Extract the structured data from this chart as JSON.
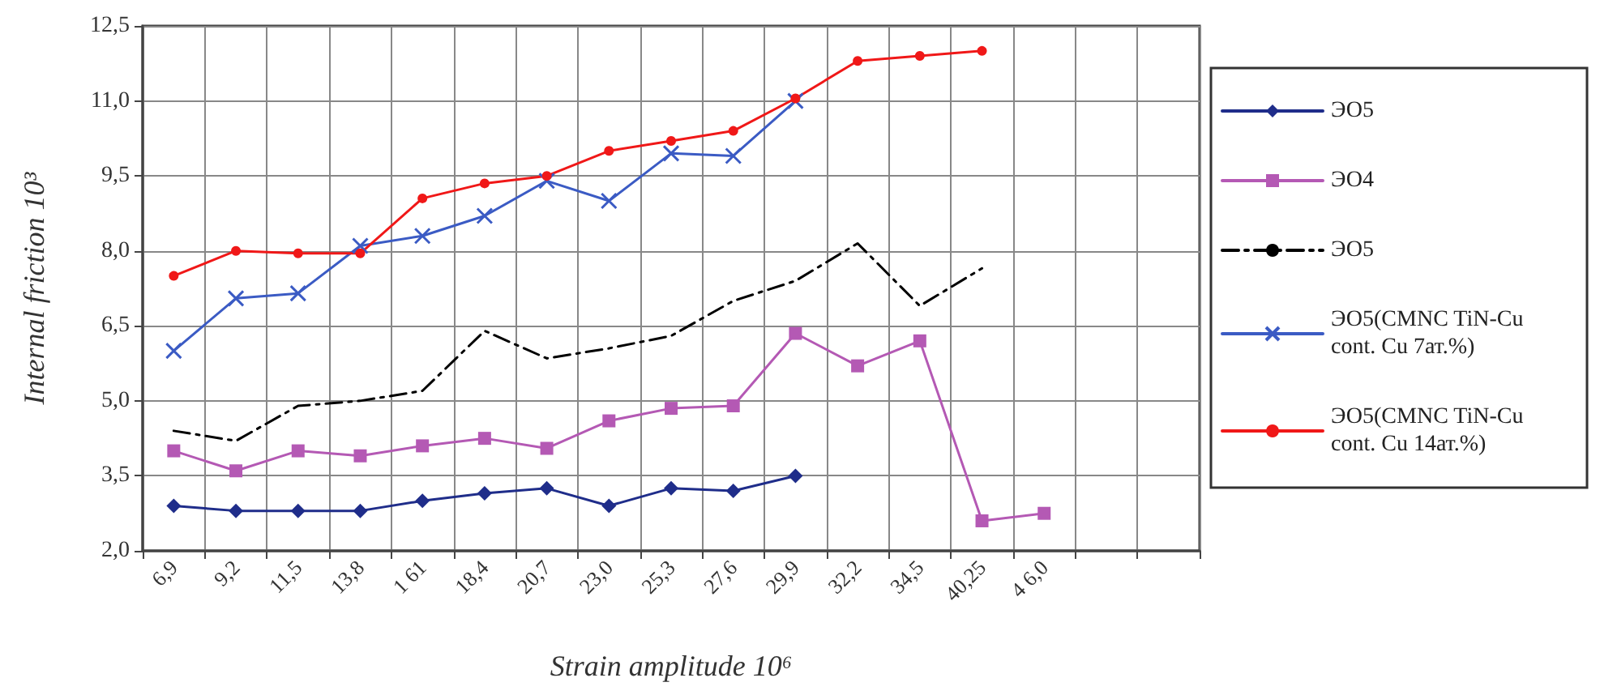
{
  "chart_data": {
    "type": "line",
    "xlabel": "Strain amplitude 10⁶",
    "ylabel": "Internal friction 10³",
    "categories": [
      "6,9",
      "9,2",
      "11,5",
      "13,8",
      "1 61",
      "18,4",
      "20,7",
      "23,0",
      "25,3",
      "27,6",
      "29,9",
      "32,2",
      "34,5",
      "40,25",
      "4 6,0",
      null,
      null
    ],
    "ylim": [
      2,
      12.5
    ],
    "yticks": [
      {
        "value": 2,
        "label": "2,0"
      },
      {
        "value": 3.5,
        "label": "3,5"
      },
      {
        "value": 5,
        "label": "5,0"
      },
      {
        "value": 6.5,
        "label": "6,5"
      },
      {
        "value": 8,
        "label": "8,0"
      },
      {
        "value": 9.5,
        "label": "9,5"
      },
      {
        "value": 11,
        "label": "11,0"
      },
      {
        "value": 12.5,
        "label": "12,5"
      }
    ],
    "grid": true,
    "legend": "right",
    "series": [
      {
        "name": "ЭО5",
        "color": "#1f2d8a",
        "marker": "diamond",
        "line_style": "solid",
        "values": [
          2.9,
          2.8,
          2.8,
          2.8,
          3.0,
          3.15,
          3.25,
          2.9,
          3.25,
          3.2,
          3.5,
          null,
          null,
          null,
          null,
          null,
          null
        ]
      },
      {
        "name": "ЭО4",
        "color": "#b459b4",
        "marker": "square",
        "line_style": "solid",
        "values": [
          4.0,
          3.6,
          4.0,
          3.9,
          4.1,
          4.25,
          4.05,
          4.6,
          4.85,
          4.9,
          6.35,
          5.7,
          6.2,
          2.6,
          2.75,
          null,
          null
        ]
      },
      {
        "name": "ЭО5",
        "color": "#000000",
        "marker": "none",
        "line_style": "dashed",
        "values": [
          4.4,
          4.2,
          4.9,
          5.0,
          5.2,
          6.4,
          5.85,
          6.05,
          6.3,
          7.0,
          7.4,
          8.15,
          6.9,
          7.65,
          null,
          null,
          null
        ]
      },
      {
        "name": "ЭО5(CMNC TiN-Cu cont. Cu 7ат.%)",
        "color": "#3b5bc4",
        "marker": "cross",
        "line_style": "solid",
        "values": [
          6.0,
          7.05,
          7.15,
          8.1,
          8.3,
          8.7,
          9.4,
          9.0,
          9.95,
          9.9,
          11.0,
          null,
          null,
          null,
          null,
          null,
          null
        ]
      },
      {
        "name": "ЭО5(CMNC TiN-Cu cont. Cu 14ат.%)",
        "color": "#f01818",
        "marker": "circle",
        "line_style": "solid",
        "values": [
          7.5,
          8.0,
          7.95,
          7.95,
          9.05,
          9.35,
          9.5,
          10.0,
          10.2,
          10.4,
          11.05,
          11.8,
          11.9,
          12.0,
          null,
          null,
          null
        ]
      }
    ]
  }
}
